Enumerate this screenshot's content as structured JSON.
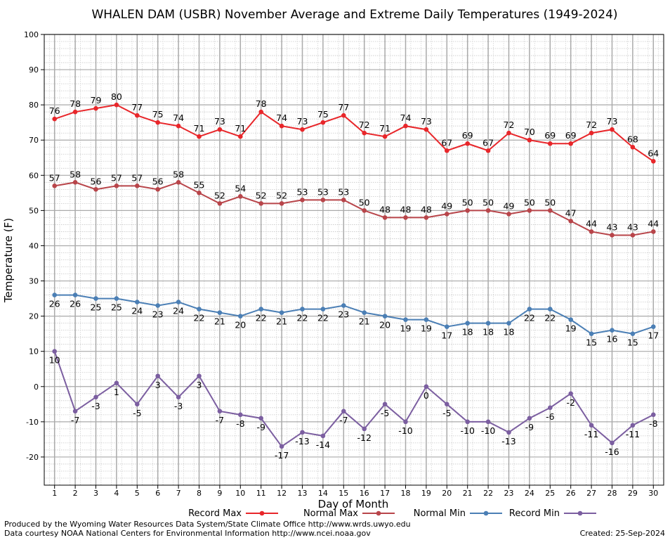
{
  "chart_data": {
    "type": "line",
    "title": "WHALEN DAM (USBR) November Average and Extreme Daily Temperatures (1949-2024)",
    "xlabel": "Day of Month",
    "ylabel": "Temperature (F)",
    "ylim": [
      -28,
      100
    ],
    "y_ticks": [
      -20,
      -10,
      0,
      10,
      20,
      30,
      40,
      50,
      60,
      70,
      80,
      90,
      100
    ],
    "x": [
      1,
      2,
      3,
      4,
      5,
      6,
      7,
      8,
      9,
      10,
      11,
      12,
      13,
      14,
      15,
      16,
      17,
      18,
      19,
      20,
      21,
      22,
      23,
      24,
      25,
      26,
      27,
      28,
      29,
      30
    ],
    "grid": true,
    "legend_position": "bottom",
    "series": [
      {
        "name": "Record Max",
        "color": "#e8262a",
        "values": [
          76,
          78,
          79,
          80,
          77,
          75,
          74,
          71,
          73,
          71,
          78,
          74,
          73,
          75,
          77,
          72,
          71,
          74,
          73,
          67,
          69,
          67,
          72,
          70,
          69,
          69,
          72,
          73,
          68,
          64
        ]
      },
      {
        "name": "Normal Max",
        "color": "#b8454a",
        "values": [
          57,
          58,
          56,
          57,
          57,
          56,
          58,
          55,
          52,
          54,
          52,
          52,
          53,
          53,
          53,
          50,
          48,
          48,
          48,
          49,
          50,
          50,
          49,
          50,
          50,
          47,
          44,
          43,
          43,
          44
        ]
      },
      {
        "name": "Normal Min",
        "color": "#4b7fb5",
        "values": [
          26,
          26,
          25,
          25,
          24,
          23,
          24,
          22,
          21,
          20,
          22,
          21,
          22,
          22,
          23,
          21,
          20,
          19,
          19,
          17,
          18,
          18,
          18,
          22,
          22,
          19,
          15,
          16,
          15,
          17
        ]
      },
      {
        "name": "Record Min",
        "color": "#7b5ea0",
        "values": [
          10,
          -7,
          -3,
          1,
          -5,
          3,
          -3,
          3,
          -7,
          -8,
          -9,
          -17,
          -13,
          -14,
          -7,
          -12,
          -5,
          -10,
          0,
          -5,
          -10,
          -10,
          -13,
          -9,
          -6,
          -2,
          -11,
          -16,
          -11,
          -8
        ]
      }
    ]
  },
  "footer": {
    "line1": "Produced by the Wyoming Water Resources Data System/State Climate Office http://www.wrds.uwyo.edu",
    "line2": "Data courtesy NOAA National Centers for Environmental Information http://www.ncei.noaa.gov",
    "created": "Created:  25-Sep-2024"
  }
}
